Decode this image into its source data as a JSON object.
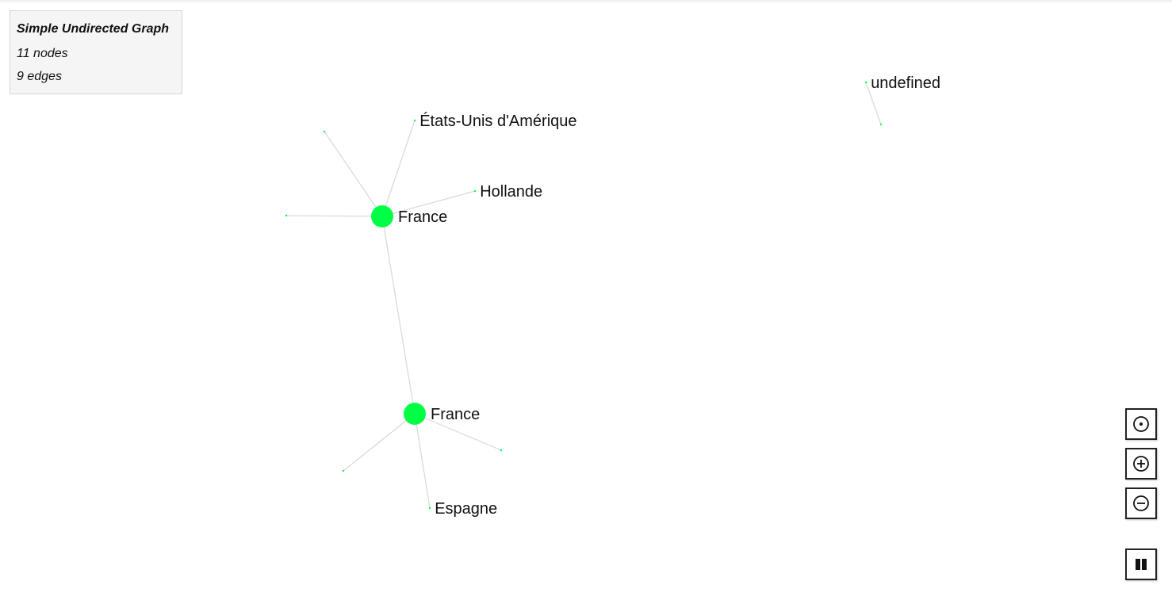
{
  "info_panel": {
    "title": "Simple Undirected Graph",
    "nodes_text": "11 nodes",
    "edges_text": "9 edges"
  },
  "graph": {
    "node_color": "#00ff44",
    "edge_color": "#d8d8d8",
    "nodes": [
      {
        "id": "n1",
        "label": "France",
        "size": "large"
      },
      {
        "id": "n2",
        "label": "France",
        "size": "large"
      },
      {
        "id": "n3",
        "label": "États-Unis d'Amérique",
        "size": "small"
      },
      {
        "id": "n4",
        "label": "Hollande",
        "size": "small"
      },
      {
        "id": "n5",
        "label": "",
        "size": "small"
      },
      {
        "id": "n6",
        "label": "",
        "size": "small"
      },
      {
        "id": "n7",
        "label": "Espagne",
        "size": "small"
      },
      {
        "id": "n8",
        "label": "",
        "size": "small"
      },
      {
        "id": "n9",
        "label": "",
        "size": "small"
      },
      {
        "id": "n10",
        "label": "undefined",
        "size": "small"
      },
      {
        "id": "n11",
        "label": "",
        "size": "small"
      }
    ],
    "edges": [
      {
        "source": "n1",
        "target": "n3"
      },
      {
        "source": "n1",
        "target": "n4"
      },
      {
        "source": "n1",
        "target": "n5"
      },
      {
        "source": "n1",
        "target": "n6"
      },
      {
        "source": "n1",
        "target": "n2"
      },
      {
        "source": "n2",
        "target": "n7"
      },
      {
        "source": "n2",
        "target": "n8"
      },
      {
        "source": "n2",
        "target": "n9"
      },
      {
        "source": "n10",
        "target": "n11"
      }
    ]
  },
  "controls": [
    {
      "name": "center-view-button",
      "icon": "target-icon"
    },
    {
      "name": "zoom-in-button",
      "icon": "zoom-in-icon"
    },
    {
      "name": "zoom-out-button",
      "icon": "zoom-out-icon"
    },
    {
      "name": "pause-button",
      "icon": "pause-icon"
    }
  ]
}
